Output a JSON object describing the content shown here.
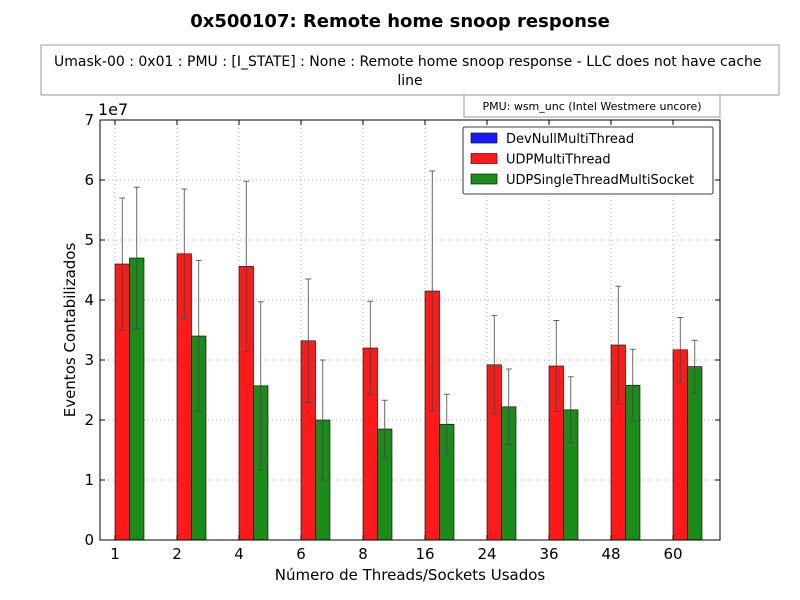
{
  "chart_data": {
    "type": "bar",
    "title": "0x500107: Remote home snoop response",
    "subtitle": "Umask-00 : 0x01 : PMU : [I_STATE] : None : Remote home snoop response - LLC does not have cache line",
    "annotation": "PMU: wsm_unc (Intel Westmere uncore)",
    "xlabel": "Número de Threads/Sockets Usados",
    "ylabel": "Eventos Contabilizados",
    "y_multiplier_label": "1e7",
    "ylim": [
      0,
      70000000
    ],
    "y_ticks": [
      0,
      10000000,
      20000000,
      30000000,
      40000000,
      50000000,
      60000000,
      70000000
    ],
    "y_tick_labels": [
      "0",
      "1",
      "2",
      "3",
      "4",
      "5",
      "6",
      "7"
    ],
    "grid": true,
    "legend_position": "top-right",
    "categories": [
      "1",
      "2",
      "4",
      "6",
      "8",
      "16",
      "24",
      "36",
      "48",
      "60"
    ],
    "series": [
      {
        "name": "DevNullMultiThread",
        "color": "#1a1aff",
        "values": [
          0,
          0,
          0,
          0,
          0,
          0,
          0,
          0,
          0,
          0
        ],
        "errors": [
          0,
          0,
          0,
          0,
          0,
          0,
          0,
          0,
          0,
          0
        ]
      },
      {
        "name": "UDPMultiThread",
        "color": "#ff1a1a",
        "values": [
          46000000,
          47700000,
          45600000,
          33200000,
          32000000,
          41500000,
          29200000,
          29000000,
          32500000,
          31700000
        ],
        "errors": [
          11000000,
          10800000,
          14200000,
          10300000,
          7800000,
          20000000,
          8200000,
          7600000,
          9800000,
          5400000
        ]
      },
      {
        "name": "UDPSingleThreadMultiSocket",
        "color": "#1a8c1a",
        "values": [
          47000000,
          34000000,
          25700000,
          20000000,
          18500000,
          19300000,
          22200000,
          21700000,
          25800000,
          28900000
        ],
        "errors": [
          11800000,
          12600000,
          14000000,
          10000000,
          4800000,
          5000000,
          6300000,
          5500000,
          6000000,
          4400000
        ]
      }
    ]
  }
}
